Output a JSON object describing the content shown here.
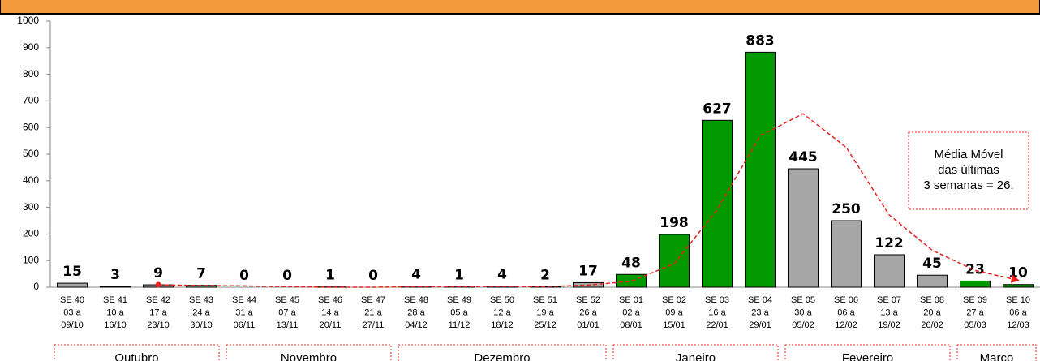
{
  "chart_data": {
    "type": "bar",
    "categories": [
      [
        "SE 40",
        "03 a",
        "09/10"
      ],
      [
        "SE 41",
        "10 a",
        "16/10"
      ],
      [
        "SE 42",
        "17 a",
        "23/10"
      ],
      [
        "SE 43",
        "24 a",
        "30/10"
      ],
      [
        "SE 44",
        "31 a",
        "06/11"
      ],
      [
        "SE 45",
        "07 a",
        "13/11"
      ],
      [
        "SE 46",
        "14 a",
        "20/11"
      ],
      [
        "SE 47",
        "21 a",
        "27/11"
      ],
      [
        "SE 48",
        "28 a",
        "04/12"
      ],
      [
        "SE 49",
        "05 a",
        "11/12"
      ],
      [
        "SE 50",
        "12 a",
        "18/12"
      ],
      [
        "SE 51",
        "19 a",
        "25/12"
      ],
      [
        "SE 52",
        "26 a",
        "01/01"
      ],
      [
        "SE 01",
        "02 a",
        "08/01"
      ],
      [
        "SE 02",
        "09 a",
        "15/01"
      ],
      [
        "SE 03",
        "16 a",
        "22/01"
      ],
      [
        "SE 04",
        "23 a",
        "29/01"
      ],
      [
        "SE 05",
        "30 a",
        "05/02"
      ],
      [
        "SE 06",
        "06 a",
        "12/02"
      ],
      [
        "SE 07",
        "13 a",
        "19/02"
      ],
      [
        "SE 08",
        "20 a",
        "26/02"
      ],
      [
        "SE 09",
        "27 a",
        "05/03"
      ],
      [
        "SE 10",
        "06 a",
        "12/03"
      ]
    ],
    "values": [
      15,
      3,
      9,
      7,
      0,
      0,
      1,
      0,
      4,
      1,
      4,
      2,
      17,
      48,
      198,
      627,
      883,
      445,
      250,
      122,
      45,
      23,
      10
    ],
    "colors": [
      "#a6a6a6",
      "#a6a6a6",
      "#a6a6a6",
      "#a6a6a6",
      "#a6a6a6",
      "#a6a6a6",
      "#a6a6a6",
      "#a6a6a6",
      "#a6a6a6",
      "#a6a6a6",
      "#a6a6a6",
      "#a6a6a6",
      "#a6a6a6",
      "#009900",
      "#009900",
      "#009900",
      "#009900",
      "#a6a6a6",
      "#a6a6a6",
      "#a6a6a6",
      "#a6a6a6",
      "#009900",
      "#009900"
    ],
    "moving_average": {
      "color": "#e8201e",
      "values": [
        null,
        null,
        9,
        6,
        5,
        2,
        0,
        0,
        2,
        2,
        3,
        2,
        8,
        22,
        88,
        291,
        569,
        652,
        526,
        272,
        139,
        63,
        26
      ]
    },
    "ylim": [
      0,
      1000
    ],
    "yticks": [
      0,
      100,
      200,
      300,
      400,
      500,
      600,
      700,
      800,
      900,
      1000
    ],
    "annotation": [
      "Média Móvel",
      "das últimas",
      "3 semanas = 26."
    ],
    "months": [
      "Outubro",
      "Novembro",
      "Dezembro",
      "Janeiro",
      "Fevereiro",
      "Março"
    ]
  }
}
